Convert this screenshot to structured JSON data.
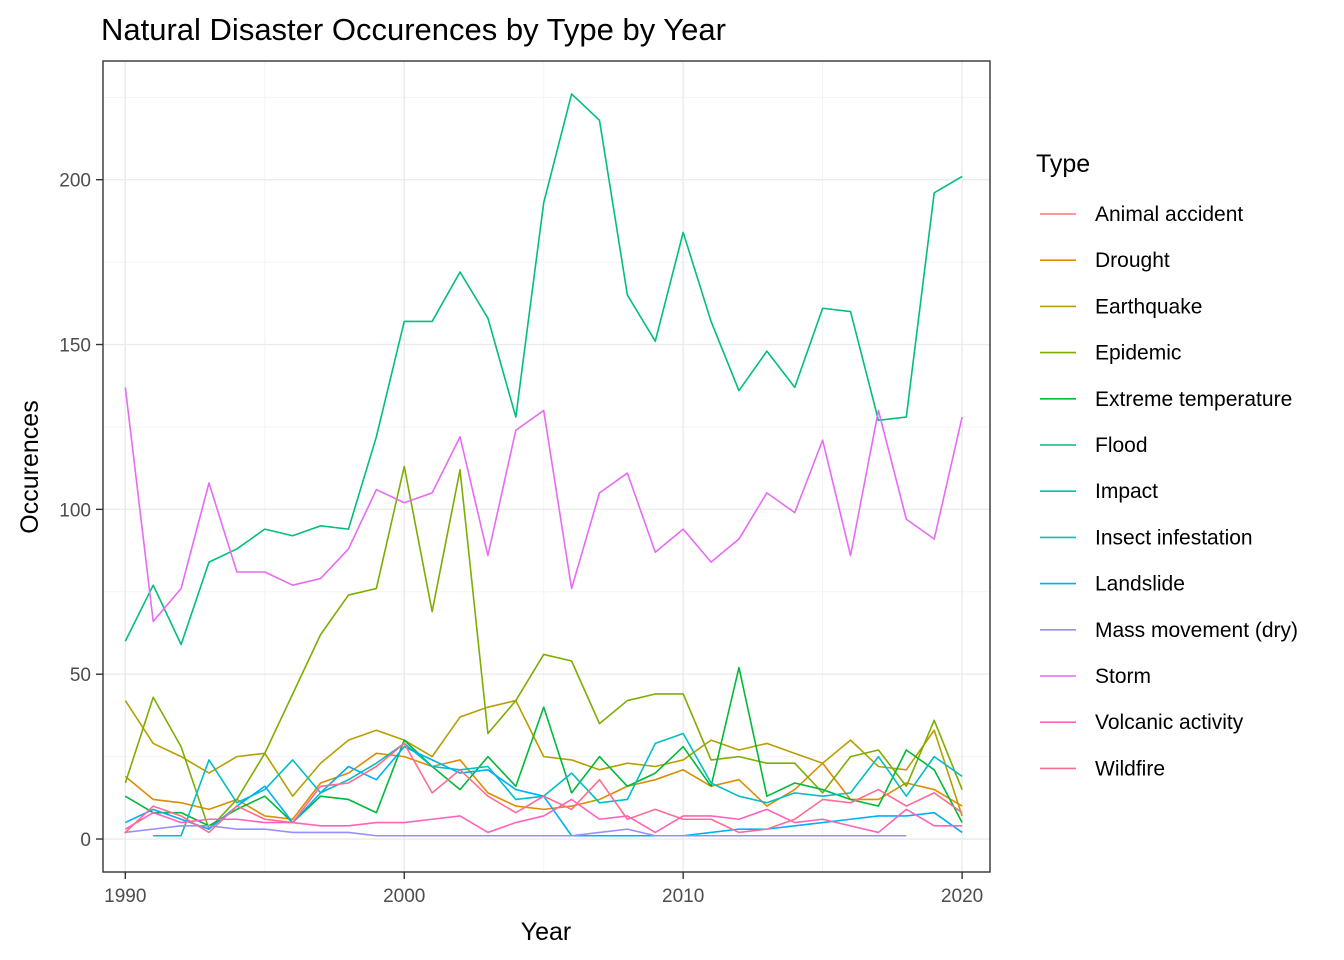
{
  "chart_data": {
    "type": "line",
    "title": "Natural Disaster Occurences by Type by Year",
    "xlabel": "Year",
    "ylabel": "Occurences",
    "xlim": [
      1989.2,
      2021.0
    ],
    "ylim": [
      -10,
      236
    ],
    "xticks": [
      1990,
      2000,
      2010,
      2020
    ],
    "yticks": [
      0,
      50,
      100,
      150,
      200
    ],
    "grid": true,
    "legend": {
      "title": "Type",
      "position": "right"
    },
    "series": [
      {
        "name": "Animal accident",
        "color": "#F8766D",
        "x": [
          1990
        ],
        "y": [
          2
        ]
      },
      {
        "name": "Drought",
        "color": "#DE8C00",
        "x": [
          1990,
          1991,
          1992,
          1993,
          1994,
          1995,
          1996,
          1997,
          1998,
          1999,
          2000,
          2001,
          2002,
          2003,
          2004,
          2005,
          2006,
          2007,
          2008,
          2009,
          2010,
          2011,
          2012,
          2013,
          2014,
          2015,
          2016,
          2017,
          2018,
          2019,
          2020
        ],
        "y": [
          19,
          12,
          11,
          9,
          12,
          7,
          6,
          17,
          20,
          26,
          25,
          22,
          24,
          14,
          10,
          9,
          10,
          12,
          16,
          18,
          21,
          16,
          18,
          10,
          15,
          23,
          12,
          12,
          17,
          15,
          10
        ]
      },
      {
        "name": "Earthquake",
        "color": "#B79F00",
        "x": [
          1990,
          1991,
          1992,
          1993,
          1994,
          1995,
          1996,
          1997,
          1998,
          1999,
          2000,
          2001,
          2002,
          2003,
          2004,
          2005,
          2006,
          2007,
          2008,
          2009,
          2010,
          2011,
          2012,
          2013,
          2014,
          2015,
          2016,
          2017,
          2018,
          2019,
          2020
        ],
        "y": [
          42,
          29,
          25,
          20,
          25,
          26,
          13,
          23,
          30,
          33,
          30,
          25,
          37,
          40,
          42,
          25,
          24,
          21,
          23,
          22,
          24,
          30,
          27,
          29,
          26,
          23,
          30,
          22,
          21,
          33,
          7
        ]
      },
      {
        "name": "Epidemic",
        "color": "#7CAE00",
        "x": [
          1990,
          1991,
          1992,
          1993,
          1994,
          1995,
          1996,
          1997,
          1998,
          1999,
          2000,
          2001,
          2002,
          2003,
          2004,
          2005,
          2006,
          2007,
          2008,
          2009,
          2010,
          2011,
          2012,
          2013,
          2014,
          2015,
          2016,
          2017,
          2018,
          2019,
          2020
        ],
        "y": [
          17,
          43,
          28,
          3,
          12,
          26,
          44,
          62,
          74,
          76,
          113,
          69,
          112,
          32,
          42,
          56,
          54,
          35,
          42,
          44,
          44,
          24,
          25,
          23,
          23,
          14,
          25,
          27,
          16,
          36,
          15
        ]
      },
      {
        "name": "Extreme temperature",
        "color": "#00BA38",
        "x": [
          1990,
          1991,
          1992,
          1993,
          1994,
          1995,
          1996,
          1997,
          1998,
          1999,
          2000,
          2001,
          2002,
          2003,
          2004,
          2005,
          2006,
          2007,
          2008,
          2009,
          2010,
          2011,
          2012,
          2013,
          2014,
          2015,
          2016,
          2017,
          2018,
          2019,
          2020
        ],
        "y": [
          13,
          8,
          8,
          4,
          9,
          13,
          5,
          13,
          12,
          8,
          30,
          22,
          15,
          25,
          16,
          40,
          14,
          25,
          16,
          20,
          28,
          16,
          52,
          13,
          17,
          15,
          12,
          10,
          27,
          21,
          5
        ]
      },
      {
        "name": "Flood",
        "color": "#00BF7D",
        "x": [
          1990,
          1991,
          1992,
          1993,
          1994,
          1995,
          1996,
          1997,
          1998,
          1999,
          2000,
          2001,
          2002,
          2003,
          2004,
          2005,
          2006,
          2007,
          2008,
          2009,
          2010,
          2011,
          2012,
          2013,
          2014,
          2015,
          2016,
          2017,
          2018,
          2019,
          2020
        ],
        "y": [
          60,
          77,
          59,
          84,
          88,
          94,
          92,
          95,
          94,
          122,
          157,
          157,
          172,
          158,
          128,
          193,
          226,
          218,
          165,
          151,
          184,
          157,
          136,
          148,
          137,
          161,
          160,
          127,
          128,
          196,
          201
        ]
      },
      {
        "name": "Impact",
        "color": "#00C1A3",
        "x": [],
        "y": []
      },
      {
        "name": "Insect infestation",
        "color": "#00BFC4",
        "x": [
          1991,
          1992,
          1993,
          1994,
          1995,
          1996,
          1997,
          1998,
          1999,
          2000,
          2001,
          2002,
          2003,
          2004,
          2005,
          2006,
          2007,
          2008,
          2009,
          2010,
          2011,
          2012,
          2013,
          2014,
          2015,
          2016,
          2017,
          2018,
          2019,
          2020
        ],
        "y": [
          1,
          1,
          24,
          11,
          15,
          24,
          14,
          18,
          23,
          29,
          22,
          21,
          22,
          12,
          13,
          20,
          11,
          12,
          29,
          32,
          17,
          13,
          11,
          14,
          13,
          14,
          25,
          13,
          25,
          19
        ]
      },
      {
        "name": "Landslide",
        "color": "#00B0F6",
        "x": [
          1990,
          1991,
          1992,
          1993,
          1994,
          1995,
          1996,
          1997,
          1998,
          1999,
          2000,
          2001,
          2002,
          2003,
          2004,
          2005,
          2006,
          2007,
          2008,
          2009,
          2010,
          2011,
          2012,
          2013,
          2014,
          2015,
          2016,
          2017,
          2018,
          2019,
          2020
        ],
        "y": [
          5,
          9,
          6,
          3,
          10,
          16,
          5,
          14,
          22,
          18,
          28,
          24,
          20,
          21,
          15,
          13,
          1,
          1,
          1,
          1,
          1,
          2,
          3,
          3,
          4,
          5,
          6,
          7,
          7,
          8,
          2
        ]
      },
      {
        "name": "Mass movement (dry)",
        "color": "#9590FF",
        "x": [
          1990,
          1991,
          1992,
          1993,
          1994,
          1995,
          1996,
          1997,
          1998,
          1999,
          2000,
          2001,
          2002,
          2003,
          2004,
          2005,
          2006,
          2007,
          2008,
          2009,
          2010,
          2011,
          2012,
          2013,
          2014,
          2015,
          2016,
          2017,
          2018
        ],
        "y": [
          2,
          3,
          4,
          4,
          3,
          3,
          2,
          2,
          2,
          1,
          1,
          1,
          1,
          1,
          1,
          1,
          1,
          2,
          3,
          1,
          1,
          1,
          1,
          1,
          1,
          1,
          1,
          1,
          1
        ]
      },
      {
        "name": "Storm",
        "color": "#E76BF3",
        "x": [
          1990,
          1991,
          1992,
          1993,
          1994,
          1995,
          1996,
          1997,
          1998,
          1999,
          2000,
          2001,
          2002,
          2003,
          2004,
          2005,
          2006,
          2007,
          2008,
          2009,
          2010,
          2011,
          2012,
          2013,
          2014,
          2015,
          2016,
          2017,
          2018,
          2019,
          2020
        ],
        "y": [
          137,
          66,
          76,
          108,
          81,
          81,
          77,
          79,
          88,
          106,
          102,
          105,
          122,
          86,
          124,
          130,
          76,
          105,
          111,
          87,
          94,
          84,
          91,
          105,
          99,
          121,
          86,
          130,
          97,
          91,
          128
        ]
      },
      {
        "name": "Volcanic activity",
        "color": "#FF62BC",
        "x": [
          1990,
          1991,
          1992,
          1993,
          1994,
          1995,
          1996,
          1997,
          1998,
          1999,
          2000,
          2001,
          2002,
          2003,
          2004,
          2005,
          2006,
          2007,
          2008,
          2009,
          2010,
          2011,
          2012,
          2013,
          2014,
          2015,
          2016,
          2017,
          2018,
          2019,
          2020
        ],
        "y": [
          3,
          8,
          5,
          6,
          6,
          5,
          5,
          4,
          4,
          5,
          5,
          6,
          7,
          2,
          5,
          7,
          12,
          6,
          7,
          2,
          7,
          7,
          6,
          9,
          5,
          6,
          4,
          2,
          9,
          4,
          4
        ]
      },
      {
        "name": "Wildfire",
        "color": "#FF6C91",
        "x": [
          1990,
          1991,
          1992,
          1993,
          1994,
          1995,
          1996,
          1997,
          1998,
          1999,
          2000,
          2001,
          2002,
          2003,
          2004,
          2005,
          2006,
          2007,
          2008,
          2009,
          2010,
          2011,
          2012,
          2013,
          2014,
          2015,
          2016,
          2017,
          2018,
          2019,
          2020
        ],
        "y": [
          2,
          10,
          7,
          2,
          10,
          6,
          5,
          16,
          17,
          22,
          29,
          14,
          21,
          13,
          8,
          13,
          9,
          18,
          6,
          9,
          6,
          6,
          2,
          3,
          6,
          12,
          11,
          15,
          10,
          14,
          8
        ]
      }
    ]
  }
}
